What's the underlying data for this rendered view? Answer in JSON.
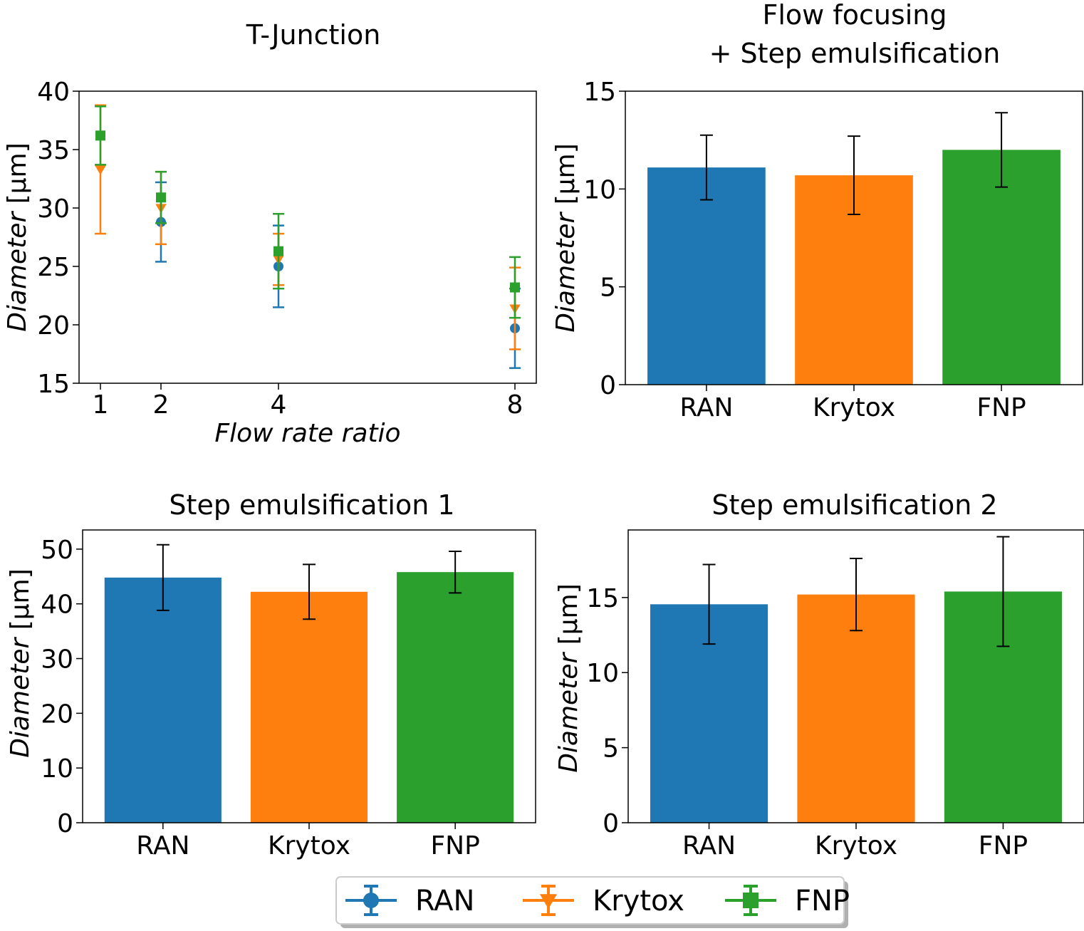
{
  "legend": {
    "entries": [
      {
        "label": "RAN",
        "color": "#1f77b4",
        "marker": "circle"
      },
      {
        "label": "Krytox",
        "color": "#ff7f0e",
        "marker": "triangle-down"
      },
      {
        "label": "FNP",
        "color": "#2ca02c",
        "marker": "square"
      }
    ]
  },
  "chart_data": [
    {
      "type": "scatter",
      "title": "T-Junction",
      "xlabel_italic": "Flow rate ratio",
      "ylabel_italic": "Diameter",
      "ylabel_unit": " [μm]",
      "x_ticks": [
        "1",
        "2",
        "4",
        "8"
      ],
      "y_ticks": [
        "15",
        "20",
        "25",
        "30",
        "35",
        "40"
      ],
      "ylim": [
        15,
        40
      ],
      "series": [
        {
          "name": "RAN",
          "color": "#1f77b4",
          "marker": "circle",
          "points": [
            {
              "x": 2,
              "y": 28.8,
              "err": 3.4
            },
            {
              "x": 4,
              "y": 25.0,
              "err": 3.5
            },
            {
              "x": 8,
              "y": 19.7,
              "err": 3.4
            }
          ]
        },
        {
          "name": "Krytox",
          "color": "#ff7f0e",
          "marker": "triangle-down",
          "points": [
            {
              "x": 1,
              "y": 33.3,
              "err": 5.5
            },
            {
              "x": 2,
              "y": 30.0,
              "err": 3.1
            },
            {
              "x": 4,
              "y": 25.6,
              "err": 2.2
            },
            {
              "x": 8,
              "y": 21.4,
              "err": 3.5
            }
          ]
        },
        {
          "name": "FNP",
          "color": "#2ca02c",
          "marker": "square",
          "points": [
            {
              "x": 1,
              "y": 36.2,
              "err": 2.5
            },
            {
              "x": 2,
              "y": 30.9,
              "err": 2.2
            },
            {
              "x": 4,
              "y": 26.3,
              "err": 3.2
            },
            {
              "x": 8,
              "y": 23.2,
              "err": 2.6
            }
          ]
        }
      ]
    },
    {
      "type": "bar",
      "title_lines": [
        "Flow focusing",
        "+ Step emulsification"
      ],
      "ylabel_italic": "Diameter",
      "ylabel_unit": " [μm]",
      "categories": [
        "RAN",
        "Krytox",
        "FNP"
      ],
      "values": [
        11.1,
        10.7,
        12.0
      ],
      "errors": [
        1.65,
        2.0,
        1.9
      ],
      "colors": [
        "#1f77b4",
        "#ff7f0e",
        "#2ca02c"
      ],
      "y_ticks": [
        "0",
        "5",
        "10",
        "15"
      ],
      "ylim": [
        0,
        15
      ]
    },
    {
      "type": "bar",
      "title": "Step emulsification 1",
      "ylabel_italic": "Diameter",
      "ylabel_unit": " [μm]",
      "categories": [
        "RAN",
        "Krytox",
        "FNP"
      ],
      "values": [
        44.8,
        42.2,
        45.8
      ],
      "errors": [
        6.0,
        5.0,
        3.8
      ],
      "colors": [
        "#1f77b4",
        "#ff7f0e",
        "#2ca02c"
      ],
      "y_ticks": [
        "0",
        "10",
        "20",
        "30",
        "40",
        "50"
      ],
      "ylim": [
        0,
        53.5
      ]
    },
    {
      "type": "bar",
      "title": "Step emulsification 2",
      "ylabel_italic": "Diameter",
      "ylabel_unit": " [μm]",
      "categories": [
        "RAN",
        "Krytox",
        "FNP"
      ],
      "values": [
        14.55,
        15.2,
        15.4
      ],
      "errors": [
        2.65,
        2.4,
        3.65
      ],
      "colors": [
        "#1f77b4",
        "#ff7f0e",
        "#2ca02c"
      ],
      "y_ticks": [
        "0",
        "5",
        "10",
        "15"
      ],
      "ylim": [
        0,
        19.5
      ]
    }
  ]
}
